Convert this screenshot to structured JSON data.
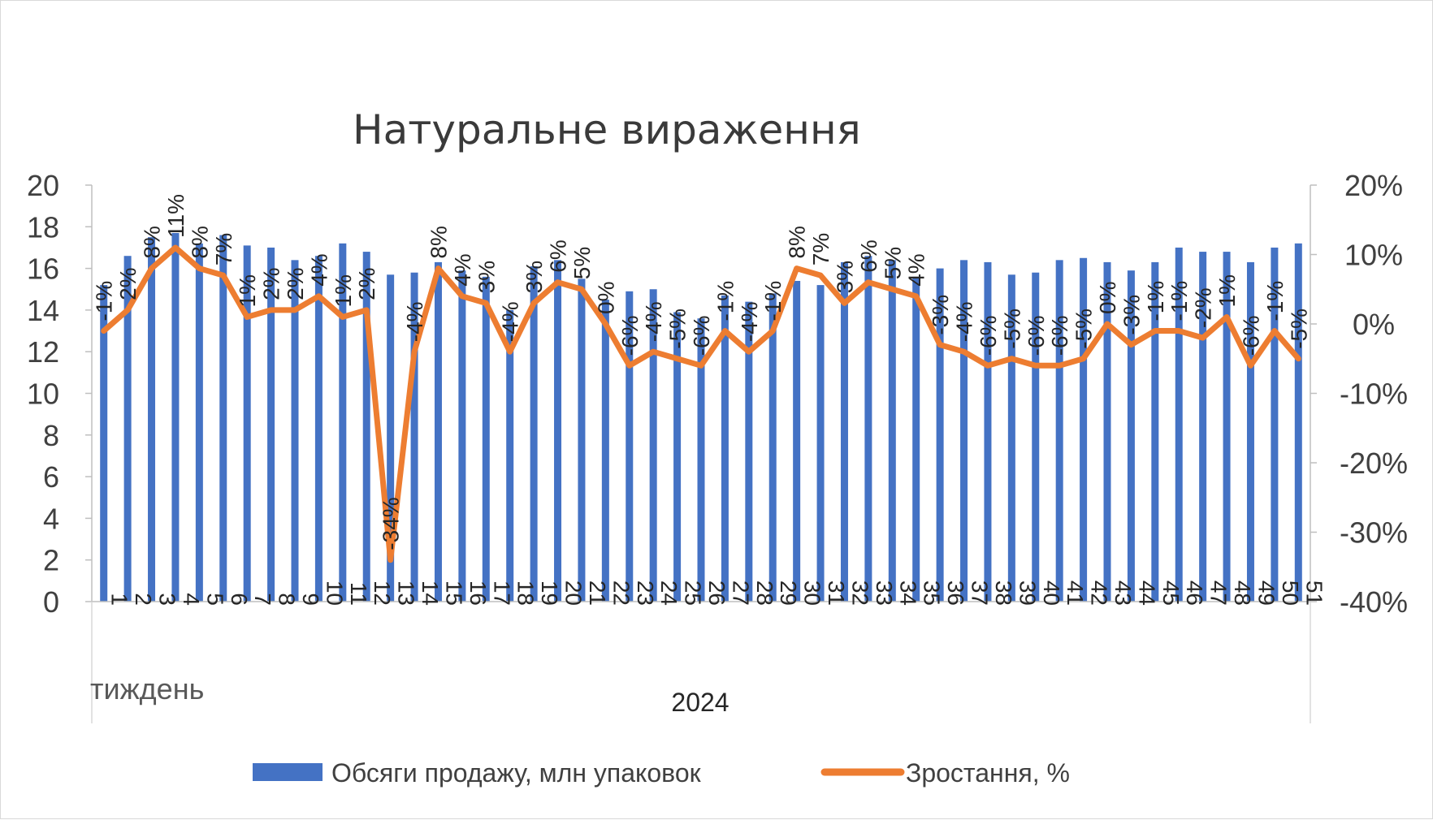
{
  "chart_data": {
    "type": "bar",
    "title": "Натуральне вираження",
    "xlabel": "тиждень",
    "group_label": "2024",
    "categories": [
      "1",
      "2",
      "3",
      "4",
      "5",
      "6",
      "7",
      "8",
      "9",
      "10",
      "11",
      "12",
      "13",
      "14",
      "15",
      "16",
      "17",
      "18",
      "19",
      "20",
      "21",
      "22",
      "23",
      "24",
      "25",
      "26",
      "27",
      "28",
      "29",
      "30",
      "31",
      "32",
      "33",
      "34",
      "35",
      "36",
      "37",
      "38",
      "39",
      "40",
      "41",
      "42",
      "43",
      "44",
      "45",
      "46",
      "47",
      "48",
      "49",
      "50",
      "51"
    ],
    "y_left": {
      "lim": [
        0,
        20
      ],
      "ticks": [
        "0",
        "2",
        "4",
        "6",
        "8",
        "10",
        "12",
        "14",
        "16",
        "18",
        "20"
      ]
    },
    "y_right": {
      "lim": [
        -40,
        20
      ],
      "ticks": [
        "-40%",
        "-30%",
        "-20%",
        "-10%",
        "0%",
        "10%",
        "20%"
      ]
    },
    "series": [
      {
        "name": "Обсяги продажу, млн упаковок",
        "type": "bar",
        "axis": "left",
        "color": "#4472c4",
        "values": [
          15.2,
          16.6,
          17.5,
          17.7,
          17.2,
          17.6,
          17.1,
          17.0,
          16.4,
          16.6,
          17.2,
          16.8,
          15.7,
          15.8,
          16.3,
          15.9,
          15.6,
          14.0,
          16.1,
          16.4,
          15.5,
          14.5,
          14.9,
          15.0,
          13.9,
          13.6,
          14.7,
          14.4,
          14.8,
          15.4,
          15.2,
          16.3,
          16.6,
          16.4,
          15.6,
          16.0,
          16.4,
          16.3,
          15.7,
          15.8,
          16.4,
          16.5,
          16.3,
          15.9,
          16.3,
          17.0,
          16.8,
          16.8,
          16.3,
          17.0,
          17.2
        ]
      },
      {
        "name": "Зростання, %",
        "type": "line",
        "axis": "right",
        "color": "#ed7d31",
        "values": [
          -1,
          2,
          8,
          11,
          8,
          7,
          1,
          2,
          2,
          4,
          1,
          2,
          -34,
          -4,
          8,
          4,
          3,
          -4,
          3,
          6,
          5,
          0,
          -6,
          -4,
          -5,
          -6,
          -1,
          -4,
          -1,
          8,
          7,
          3,
          6,
          5,
          4,
          -3,
          -4,
          -6,
          -5,
          -6,
          -6,
          -5,
          0,
          -3,
          -1,
          -1,
          -2,
          1,
          -6,
          -1,
          -5
        ],
        "labels": [
          "-1%",
          "2%",
          "8%",
          "11%",
          "8%",
          "7%",
          "1%",
          "2%",
          "2%",
          "4%",
          "1%",
          "2%",
          "-34%",
          "-4%",
          "8%",
          "4%",
          "3%",
          "-4%",
          "3%",
          "6%",
          "5%",
          "0%",
          "-6%",
          "-4%",
          "-5%",
          "-6%",
          "-1%",
          "-4%",
          "-1%",
          "8%",
          "7%",
          "3%",
          "6%",
          "5%",
          "4%",
          "-3%",
          "-4%",
          "-6%",
          "-5%",
          "-6%",
          "-6%",
          "-5%",
          "0%",
          "-3%",
          "-1%",
          "-1%",
          "-2%",
          "1%",
          "-6%",
          "-1%",
          "-5%"
        ]
      }
    ],
    "legend_position": "bottom",
    "grid": false
  }
}
